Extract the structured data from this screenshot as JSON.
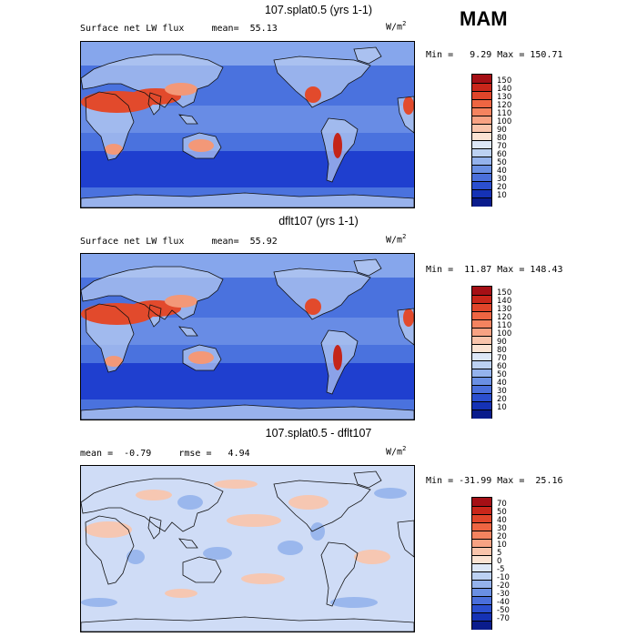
{
  "season": "MAM",
  "units": {
    "base": "W/m",
    "exp": "2"
  },
  "panels": [
    {
      "title": "107.splat0.5 (yrs 1-1)",
      "subtitle": "Surface net LW flux     mean=  55.13",
      "minmax": "Min =   9.29 Max = 150.71",
      "colorbar": {
        "labels": [
          "150",
          "140",
          "130",
          "120",
          "110",
          "100",
          "90",
          "80",
          "70",
          "60",
          "50",
          "40",
          "30",
          "20",
          "10"
        ],
        "colors": [
          "#a50f15",
          "#c9261a",
          "#e0452a",
          "#ee6542",
          "#f4835f",
          "#f7a283",
          "#f9c4ab",
          "#fbe3d3",
          "#dde7f7",
          "#bcd1f2",
          "#94b2ec",
          "#6a8fe3",
          "#4a6fdb",
          "#2b4fcf",
          "#1532b5",
          "#0a1c8c"
        ]
      },
      "field": "lw"
    },
    {
      "title": "dflt107 (yrs 1-1)",
      "subtitle": "Surface net LW flux     mean=  55.92",
      "minmax": "Min =  11.87 Max = 148.43",
      "colorbar": {
        "labels": [
          "150",
          "140",
          "130",
          "120",
          "110",
          "100",
          "90",
          "80",
          "70",
          "60",
          "50",
          "40",
          "30",
          "20",
          "10"
        ],
        "colors": [
          "#a50f15",
          "#c9261a",
          "#e0452a",
          "#ee6542",
          "#f4835f",
          "#f7a283",
          "#f9c4ab",
          "#fbe3d3",
          "#dde7f7",
          "#bcd1f2",
          "#94b2ec",
          "#6a8fe3",
          "#4a6fdb",
          "#2b4fcf",
          "#1532b5",
          "#0a1c8c"
        ]
      },
      "field": "lw"
    },
    {
      "title": "107.splat0.5 - dflt107",
      "subtitle": "mean =  -0.79     rmse =   4.94",
      "minmax": "Min = -31.99 Max =  25.16",
      "colorbar": {
        "labels": [
          "70",
          "50",
          "40",
          "30",
          "20",
          "10",
          "5",
          "0",
          "-5",
          "-10",
          "-20",
          "-30",
          "-40",
          "-50",
          "-70"
        ],
        "colors": [
          "#a50f15",
          "#c9261a",
          "#e0452a",
          "#ee6542",
          "#f4835f",
          "#f7a283",
          "#f9c4ab",
          "#fbe3d3",
          "#dde7f7",
          "#bcd1f2",
          "#94b2ec",
          "#6a8fe3",
          "#4a6fdb",
          "#2b4fcf",
          "#1532b5",
          "#0a1c8c"
        ]
      },
      "field": "diff"
    }
  ],
  "map_colors": {
    "lw_ocean_high": "#1f3fcf",
    "lw_ocean_mid": "#4a72de",
    "lw_ocean_light": "#86a6ec",
    "lw_land_cool": "#b9cdf2",
    "lw_desert_hot": "#e24a2c",
    "lw_desert_warm": "#f39878",
    "lw_desert_max": "#c4251a",
    "diff_base": "#cfdcf6",
    "diff_pos": "#f9c4ab",
    "diff_neg": "#94b2ec",
    "coast": "#111111"
  }
}
